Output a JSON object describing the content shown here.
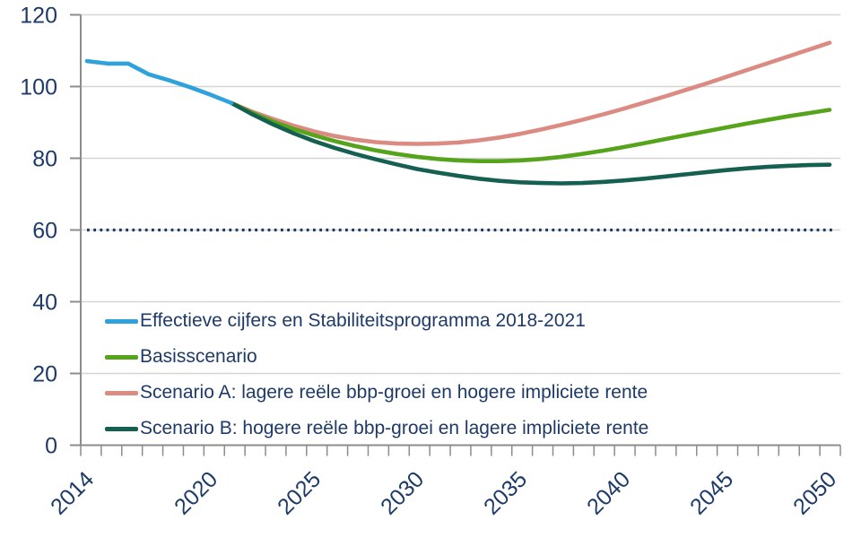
{
  "colors": {
    "text_navy": "#1E3A68",
    "gridline": "#D5D5D5",
    "axis": "#8C8C8C",
    "background": "#FFFFFF",
    "reference_dotted": "#1F3864"
  },
  "chart_data": {
    "type": "line",
    "title": "",
    "xlabel": "",
    "ylabel": "",
    "ylim": [
      0,
      120
    ],
    "yticks": [
      0,
      20,
      40,
      60,
      80,
      100,
      120
    ],
    "xticks": [
      2014,
      2020,
      2025,
      2030,
      2035,
      2040,
      2045,
      2050
    ],
    "x_range": [
      2014,
      2050
    ],
    "grid": "horizontal",
    "legend_position": "inside-bottom-left",
    "reference_line": {
      "value": 60,
      "style": "dotted",
      "color": "#1F3864"
    },
    "series": [
      {
        "name": "Effectieve cijfers en Stabiliteitsprogramma 2018-2021",
        "color": "#2FA2DB",
        "x_start": 2014,
        "values": [
          107.1,
          106.4,
          106.4,
          103.4,
          101.7,
          99.8,
          97.7,
          95.4
        ]
      },
      {
        "name": "Basisscenario",
        "color": "#55A41C",
        "x_start": 2021,
        "values": [
          95.4,
          92.7,
          90.3,
          88.2,
          86.4,
          84.8,
          83.4,
          82.2,
          81.2,
          80.4,
          79.8,
          79.4,
          79.2,
          79.2,
          79.4,
          79.8,
          80.4,
          81.2,
          82.1,
          83.1,
          84.2,
          85.3,
          86.4,
          87.5,
          88.6,
          89.7,
          90.7,
          91.7,
          92.6,
          93.5
        ]
      },
      {
        "name": "Scenario A: lagere reële bbp-groei en hogere impliciete rente",
        "color": "#DB8B82",
        "x_start": 2021,
        "values": [
          95.4,
          93.0,
          91.0,
          89.1,
          87.5,
          86.2,
          85.2,
          84.5,
          84.1,
          84.0,
          84.1,
          84.4,
          85.0,
          85.8,
          86.8,
          88.0,
          89.3,
          90.7,
          92.2,
          93.8,
          95.5,
          97.2,
          99.0,
          100.8,
          102.7,
          104.6,
          106.5,
          108.4,
          110.3,
          112.2
        ]
      },
      {
        "name": "Scenario B: hogere reële bbp-groei en lagere impliciete rente",
        "color": "#156051",
        "x_start": 2021,
        "values": [
          95.4,
          92.3,
          89.5,
          87.0,
          84.8,
          82.9,
          81.2,
          79.7,
          78.3,
          77.0,
          76.0,
          75.1,
          74.3,
          73.7,
          73.3,
          73.1,
          73.0,
          73.1,
          73.4,
          73.8,
          74.3,
          74.9,
          75.5,
          76.1,
          76.7,
          77.2,
          77.6,
          77.9,
          78.1,
          78.2
        ]
      }
    ],
    "legend_order": [
      0,
      1,
      2,
      3
    ]
  }
}
